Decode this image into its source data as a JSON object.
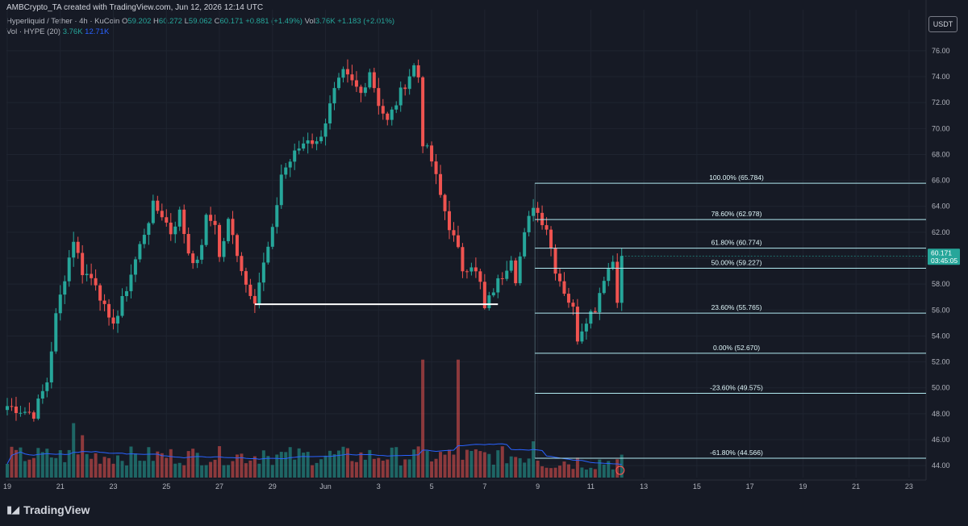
{
  "header": {
    "credit": "AMBCrypto_TA created with TradingView.com, Jun 12, 2026 12:14 UTC",
    "symbol": "Hyperliquid / Tether · 4h · KuCoin",
    "ohlc": {
      "O": "59.202",
      "H": "60.272",
      "L": "59.062",
      "C": "60.171",
      "change": "+0.881 (+1.49%)"
    },
    "vol_label": "Vol",
    "vol_value": "3.76K",
    "vol_change": "+1.183 (+2.01%)",
    "vol_indicator_label": "Vol · HYPE (20)",
    "vol_indicator_value": "3.76K",
    "vol_indicator_ma": "12.71K",
    "currency": "USDT"
  },
  "brand": {
    "name": "TradingView",
    "logo": "tradingview-logo-icon"
  },
  "colors": {
    "bg": "#161a25",
    "up": "#26a69a",
    "down": "#ef5350",
    "fib": "#b2ebf2",
    "vol_ma": "#2962ff",
    "grid": "#1f2430",
    "axis_text": "#b2b5be"
  },
  "chart_data": {
    "type": "candlestick",
    "title": "Hyperliquid / Tether · 4h · KuCoin",
    "xlabel": "",
    "ylabel": "",
    "ylim": [
      43.2,
      77.3
    ],
    "y_ticks": [
      44,
      46,
      48,
      50,
      52,
      54,
      56,
      58,
      60,
      62,
      64,
      66,
      68,
      70,
      72,
      74,
      76
    ],
    "x_ticks": [
      {
        "label": "19",
        "i": 0
      },
      {
        "label": "21",
        "i": 12
      },
      {
        "label": "23",
        "i": 24
      },
      {
        "label": "25",
        "i": 36
      },
      {
        "label": "27",
        "i": 48
      },
      {
        "label": "29",
        "i": 60
      },
      {
        "label": "Jun",
        "i": 72
      },
      {
        "label": "3",
        "i": 84
      },
      {
        "label": "5",
        "i": 96
      },
      {
        "label": "7",
        "i": 108
      },
      {
        "label": "9",
        "i": 120
      },
      {
        "label": "11",
        "i": 132
      },
      {
        "label": "13",
        "i": 144
      },
      {
        "label": "15",
        "i": 156
      },
      {
        "label": "17",
        "i": 168
      },
      {
        "label": "19",
        "i": 180
      },
      {
        "label": "21",
        "i": 192
      },
      {
        "label": "23",
        "i": 204
      }
    ],
    "total_slots": 209,
    "grid": true,
    "last_price": {
      "value": 60.171,
      "label": "60.171",
      "countdown": "03:45:05"
    },
    "support_line": {
      "value": 56.45,
      "from_i": 56,
      "to_i": 111
    },
    "fib_levels": [
      {
        "label": "100.00% (65.784)",
        "value": 65.784
      },
      {
        "label": "78.60% (62.978)",
        "value": 62.978
      },
      {
        "label": "61.80% (60.774)",
        "value": 60.774
      },
      {
        "label": "50.00% (59.227)",
        "value": 59.227
      },
      {
        "label": "23.60% (55.765)",
        "value": 55.765
      },
      {
        "label": "0.00% (52.670)",
        "value": 52.67
      },
      {
        "label": "-23.60% (49.575)",
        "value": 49.575
      },
      {
        "label": "-61.80% (44.566)",
        "value": 44.566
      }
    ],
    "fib_start_i": 119,
    "anchors": [
      [
        0,
        48.6
      ],
      [
        6,
        48.0
      ],
      [
        9,
        50.5
      ],
      [
        11,
        55.5
      ],
      [
        13,
        58.6
      ],
      [
        15,
        61.5
      ],
      [
        17,
        59.0
      ],
      [
        20,
        58.2
      ],
      [
        23,
        55.0
      ],
      [
        25,
        55.6
      ],
      [
        28,
        58.8
      ],
      [
        31,
        62.0
      ],
      [
        33,
        64.0
      ],
      [
        35,
        63.4
      ],
      [
        37,
        62.0
      ],
      [
        39,
        63.5
      ],
      [
        41,
        60.5
      ],
      [
        43,
        59.5
      ],
      [
        45,
        63.0
      ],
      [
        47,
        62.8
      ],
      [
        48,
        60.0
      ],
      [
        50,
        62.8
      ],
      [
        52,
        60.5
      ],
      [
        54,
        58.0
      ],
      [
        56,
        56.9
      ],
      [
        58,
        59.5
      ],
      [
        60,
        62.0
      ],
      [
        62,
        66.5
      ],
      [
        64,
        67.5
      ],
      [
        66,
        68.5
      ],
      [
        68,
        69.3
      ],
      [
        70,
        68.8
      ],
      [
        72,
        70.6
      ],
      [
        74,
        72.8
      ],
      [
        76,
        74.2
      ],
      [
        78,
        73.5
      ],
      [
        80,
        72.7
      ],
      [
        82,
        74.5
      ],
      [
        84,
        72.0
      ],
      [
        86,
        70.5
      ],
      [
        88,
        72.0
      ],
      [
        90,
        73.5
      ],
      [
        92,
        74.8
      ],
      [
        93,
        74.0
      ],
      [
        94,
        69.0
      ],
      [
        96,
        67.5
      ],
      [
        98,
        64.8
      ],
      [
        100,
        62.5
      ],
      [
        102,
        60.5
      ],
      [
        103,
        59.2
      ],
      [
        105,
        59.6
      ],
      [
        107,
        58.0
      ],
      [
        108,
        56.0
      ],
      [
        110,
        57.6
      ],
      [
        112,
        58.7
      ],
      [
        114,
        60.2
      ],
      [
        115,
        58.5
      ],
      [
        117,
        61.7
      ],
      [
        119,
        64.2
      ],
      [
        120,
        63.5
      ],
      [
        122,
        62.4
      ],
      [
        124,
        59.2
      ],
      [
        126,
        57.5
      ],
      [
        128,
        56.0
      ],
      [
        129,
        53.9
      ],
      [
        131,
        55.4
      ],
      [
        133,
        56.2
      ],
      [
        135,
        58.6
      ],
      [
        137,
        59.8
      ],
      [
        138,
        57.0
      ],
      [
        139,
        60.171
      ]
    ],
    "volume_spikes": [
      [
        15,
        9.0
      ],
      [
        17,
        7.0
      ],
      [
        58,
        4.5
      ],
      [
        94,
        19.5
      ],
      [
        102,
        19.5
      ],
      [
        119,
        6.0
      ]
    ]
  }
}
